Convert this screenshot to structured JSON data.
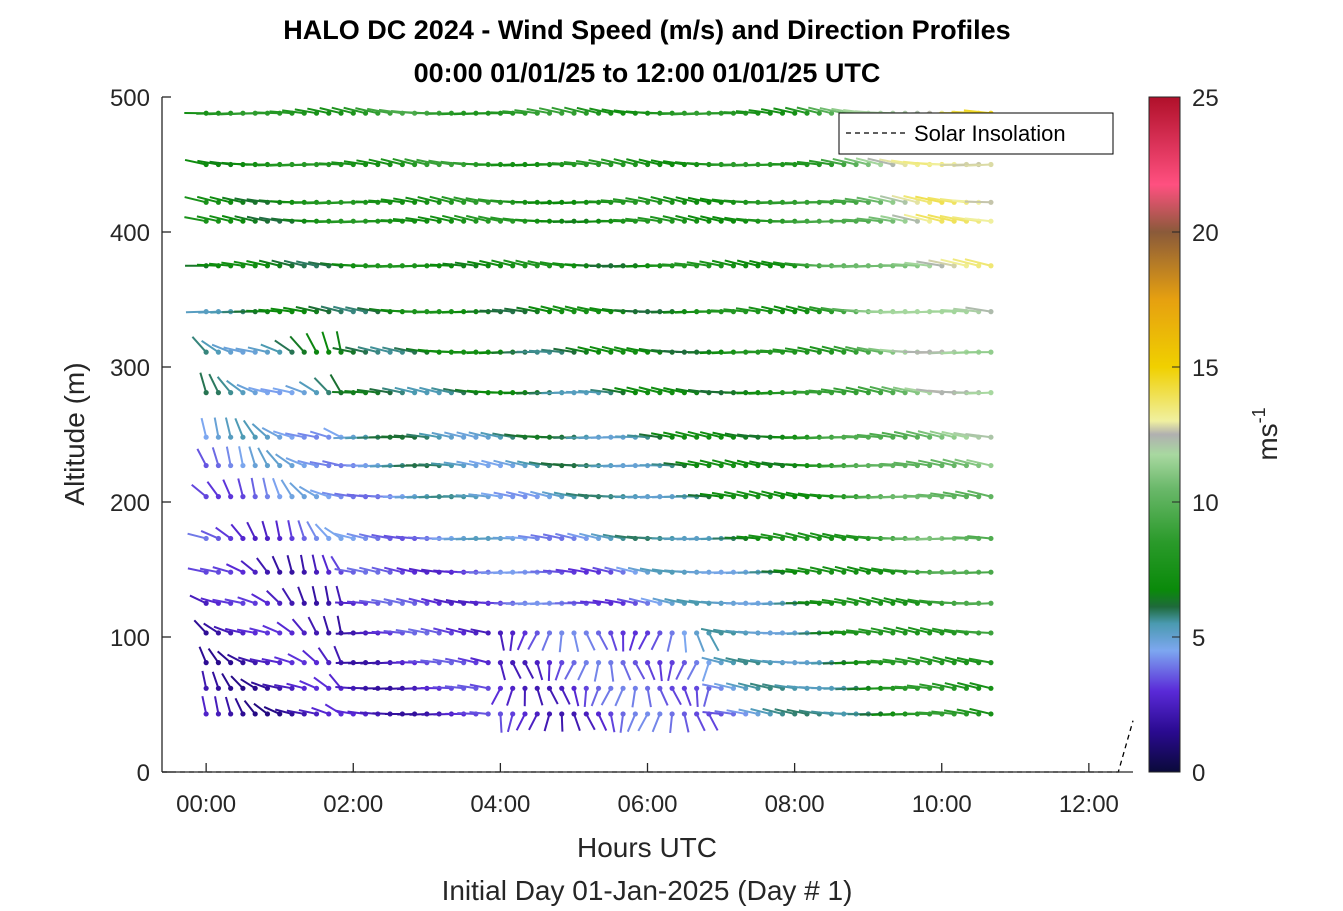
{
  "title_line1": "HALO DC 2024 - Wind Speed (m/s) and Direction Profiles",
  "title_line2": "00:00 01/01/25 to 12:00 01/01/25  UTC",
  "xlabel": "Hours UTC",
  "ylabel": "Altitude (m)",
  "subtitle": "Initial Day 01-Jan-2025 (Day # 1)",
  "legend_label": "Solar Insolation",
  "colorbar": {
    "label_base": "ms",
    "label_exp": "-1",
    "ticks": [
      "0",
      "5",
      "10",
      "15",
      "20",
      "25"
    ],
    "range": [
      0,
      25
    ]
  },
  "x_ticks": [
    "00:00",
    "02:00",
    "04:00",
    "06:00",
    "08:00",
    "10:00",
    "12:00"
  ],
  "y_ticks": [
    "0",
    "100",
    "200",
    "300",
    "400",
    "500"
  ],
  "chart_data": {
    "type": "scatter",
    "description": "wind barb field: arrows every 10 min, speed colored",
    "x_range_hours": [
      -0.6,
      12.6
    ],
    "y_range_m": [
      0,
      500
    ],
    "time_step_hours": 0.1667,
    "times_start_hours": 0.0,
    "times_end_hours": 10.83,
    "altitudes_m": [
      43,
      62,
      81,
      103,
      125,
      148,
      173,
      204,
      227,
      248,
      281,
      311,
      341,
      375,
      408,
      422,
      450,
      488
    ],
    "speed_profile_summary": [
      {
        "period": "00:00-02:00",
        "low_levels_speed": 2,
        "mid_levels_speed": 3,
        "upper_levels_speed": 8
      },
      {
        "period": "02:00-04:00",
        "low_levels_speed": 2.5,
        "mid_levels_speed": 4,
        "upper_levels_speed": 9
      },
      {
        "period": "04:00-07:00",
        "low_levels_speed": 3,
        "mid_levels_speed": 4.5,
        "upper_levels_speed": 8
      },
      {
        "period": "07:00-09:00",
        "low_levels_speed": 5,
        "mid_levels_speed": 7,
        "upper_levels_speed": 8
      },
      {
        "period": "09:00-11:00",
        "low_levels_speed": 8,
        "mid_levels_speed": 10,
        "upper_levels_speed": 14
      }
    ],
    "solar_insolation": {
      "x": [
        -0.6,
        12.4,
        12.6
      ],
      "y": [
        0,
        0,
        38
      ]
    }
  },
  "colors": {
    "axis": "#262626",
    "legend_border": "#000000"
  }
}
